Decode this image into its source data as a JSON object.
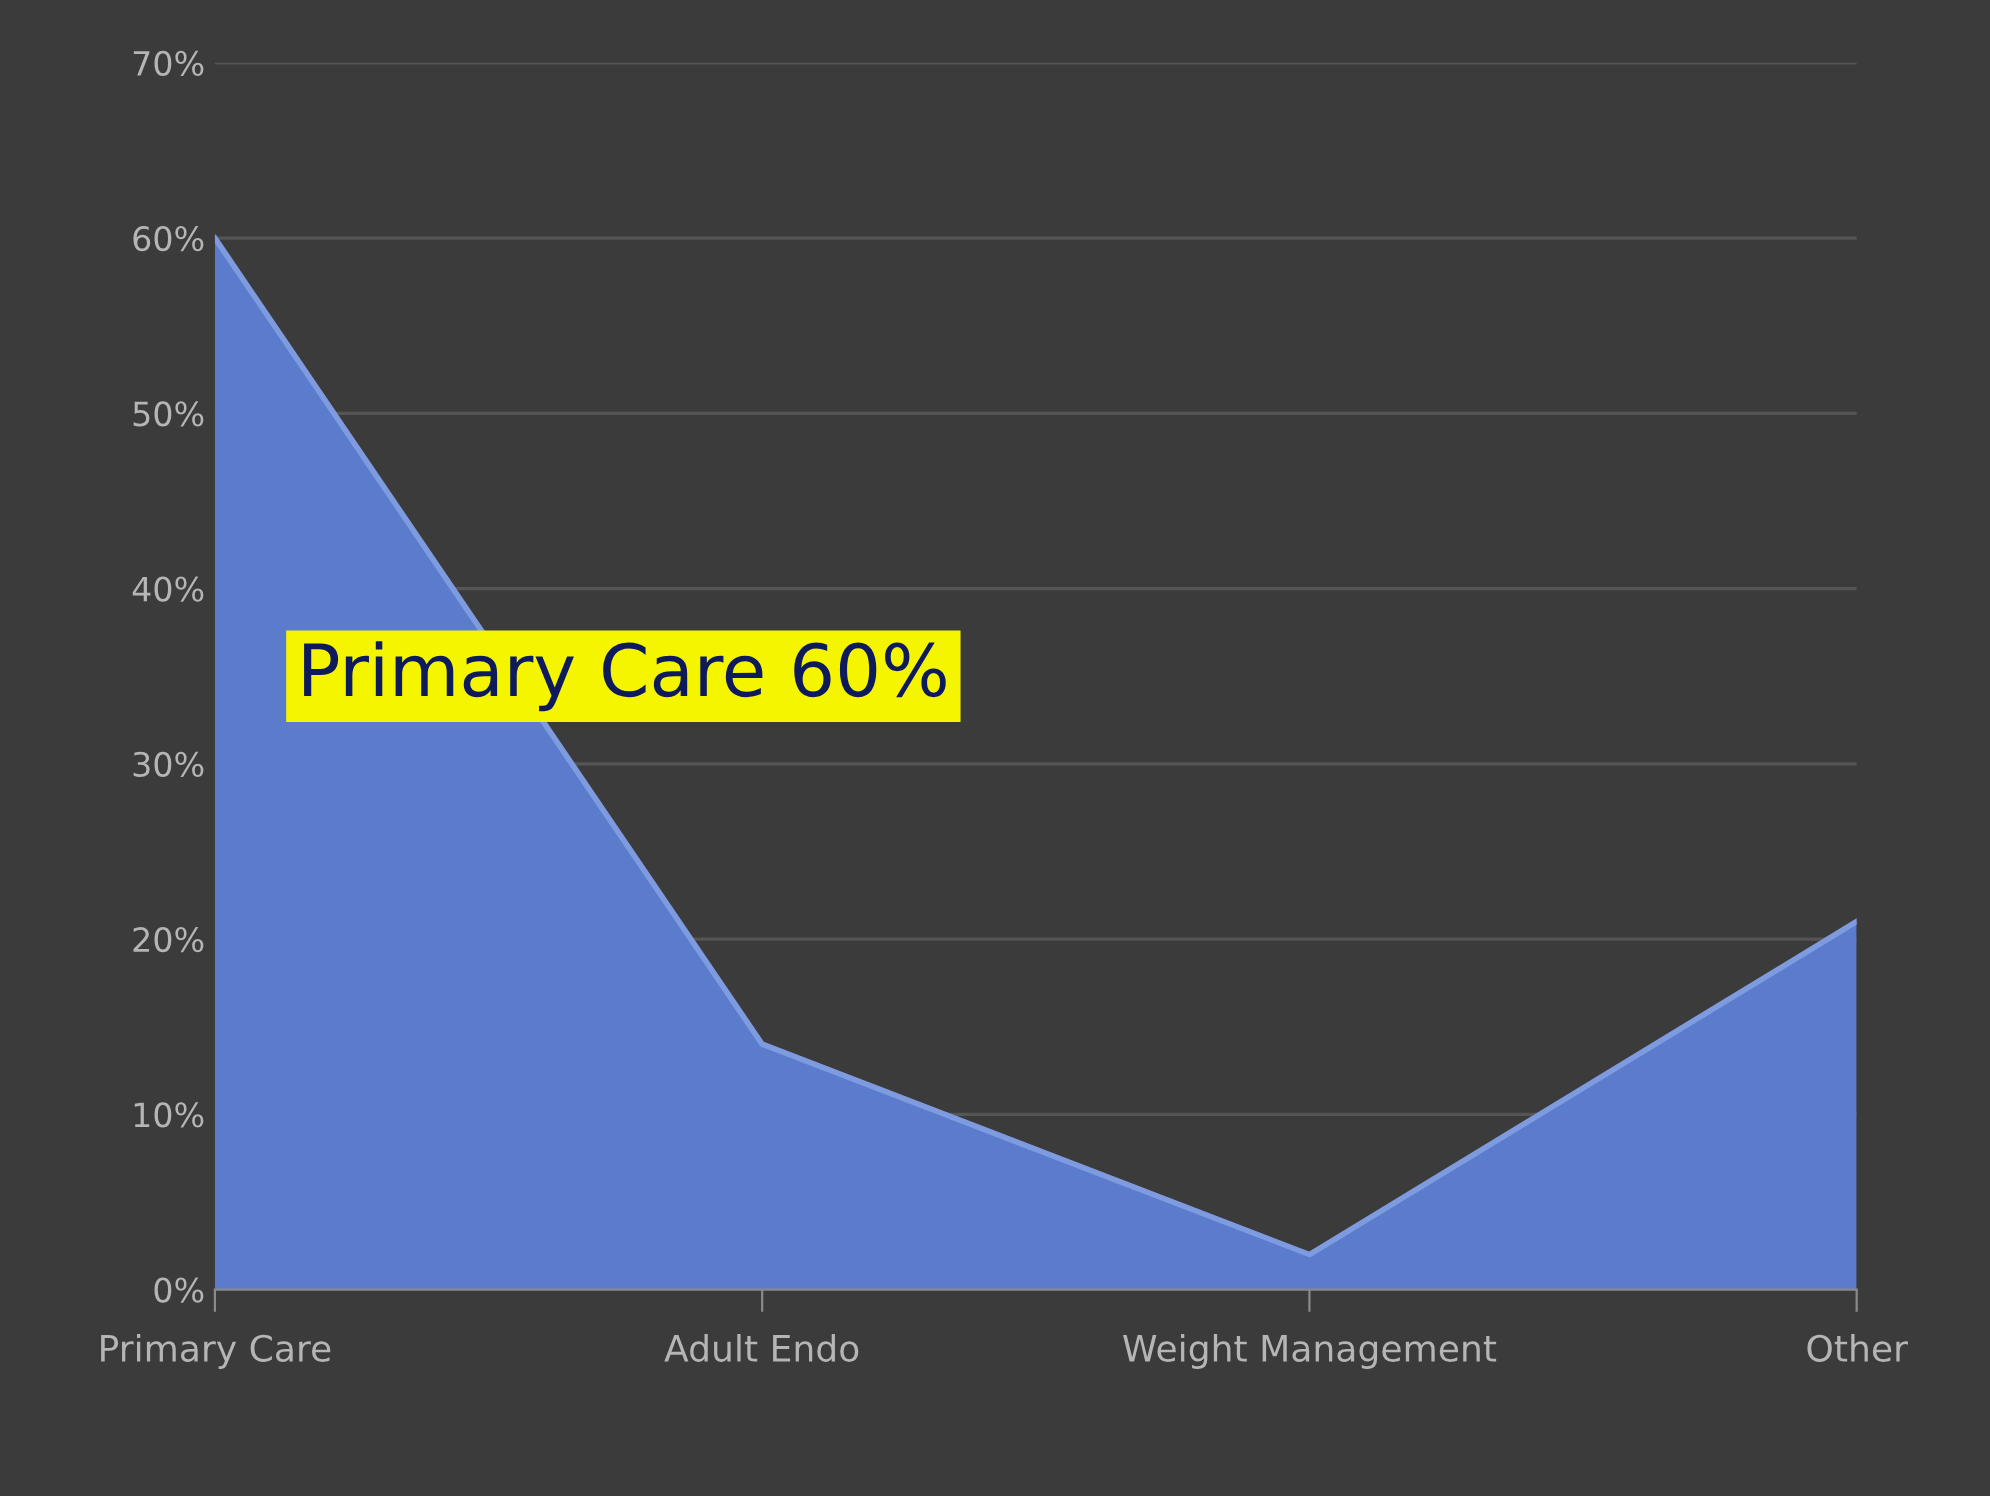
{
  "chart_data": {
    "type": "area",
    "categories": [
      "Primary Care",
      "Adult Endo",
      "Weight Management",
      "Other"
    ],
    "series": [
      {
        "color": "#5b7ccc",
        "values": [
          60,
          14,
          2,
          21
        ]
      }
    ],
    "ylim": [
      0,
      70
    ],
    "yticks": [
      {
        "value": 0,
        "label": "0%"
      },
      {
        "value": 10,
        "label": "10%"
      },
      {
        "value": 20,
        "label": "20%"
      },
      {
        "value": 30,
        "label": "30%"
      },
      {
        "value": 40,
        "label": "40%"
      },
      {
        "value": 50,
        "label": "50%"
      },
      {
        "value": 60,
        "label": "60%"
      },
      {
        "value": 70,
        "label": "70%"
      }
    ],
    "grid": "y",
    "legend": false,
    "annotations": [
      "Primary Care 60%"
    ]
  }
}
